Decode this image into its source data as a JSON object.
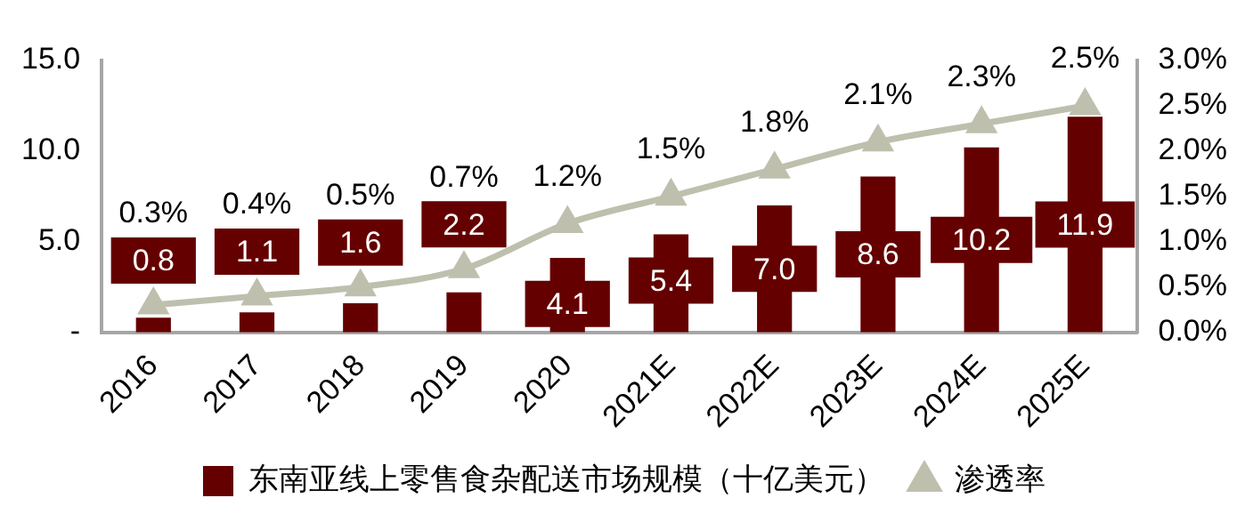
{
  "chart_data": {
    "type": "bar",
    "categories": [
      "2016",
      "2017",
      "2018",
      "2019",
      "2020",
      "2021E",
      "2022E",
      "2023E",
      "2024E",
      "2025E"
    ],
    "series": [
      {
        "name": "东南亚线上零售食杂配送市场规模（十亿美元）",
        "color": "#640000",
        "values": [
          0.8,
          1.1,
          1.6,
          2.2,
          4.1,
          5.4,
          7.0,
          8.6,
          10.2,
          11.9
        ],
        "value_labels": [
          "0.8",
          "1.1",
          "1.6",
          "2.2",
          "4.1",
          "5.4",
          "7.0",
          "8.6",
          "10.2",
          "11.9"
        ]
      },
      {
        "name": "渗透率",
        "type": "line",
        "axis": "y2",
        "color": "#bfbfae",
        "marker": "triangle",
        "values": [
          0.3,
          0.4,
          0.5,
          0.7,
          1.2,
          1.5,
          1.8,
          2.1,
          2.3,
          2.5
        ],
        "value_labels": [
          "0.3%",
          "0.4%",
          "0.5%",
          "0.7%",
          "1.2%",
          "1.5%",
          "1.8%",
          "2.1%",
          "2.3%",
          "2.5%"
        ]
      }
    ],
    "ylim": [
      0,
      15
    ],
    "yticks": [
      {
        "value": 0,
        "label": "-"
      },
      {
        "value": 5,
        "label": "5.0"
      },
      {
        "value": 10,
        "label": "10.0"
      },
      {
        "value": 15,
        "label": "15.0"
      }
    ],
    "y2lim": [
      0,
      3
    ],
    "y2ticks": [
      {
        "value": 0,
        "label": "0.0%"
      },
      {
        "value": 0.5,
        "label": "0.5%"
      },
      {
        "value": 1,
        "label": "1.0%"
      },
      {
        "value": 1.5,
        "label": "1.5%"
      },
      {
        "value": 2,
        "label": "2.0%"
      },
      {
        "value": 2.5,
        "label": "2.5%"
      },
      {
        "value": 3,
        "label": "3.0%"
      }
    ],
    "grid": false,
    "legend": "bottom"
  }
}
